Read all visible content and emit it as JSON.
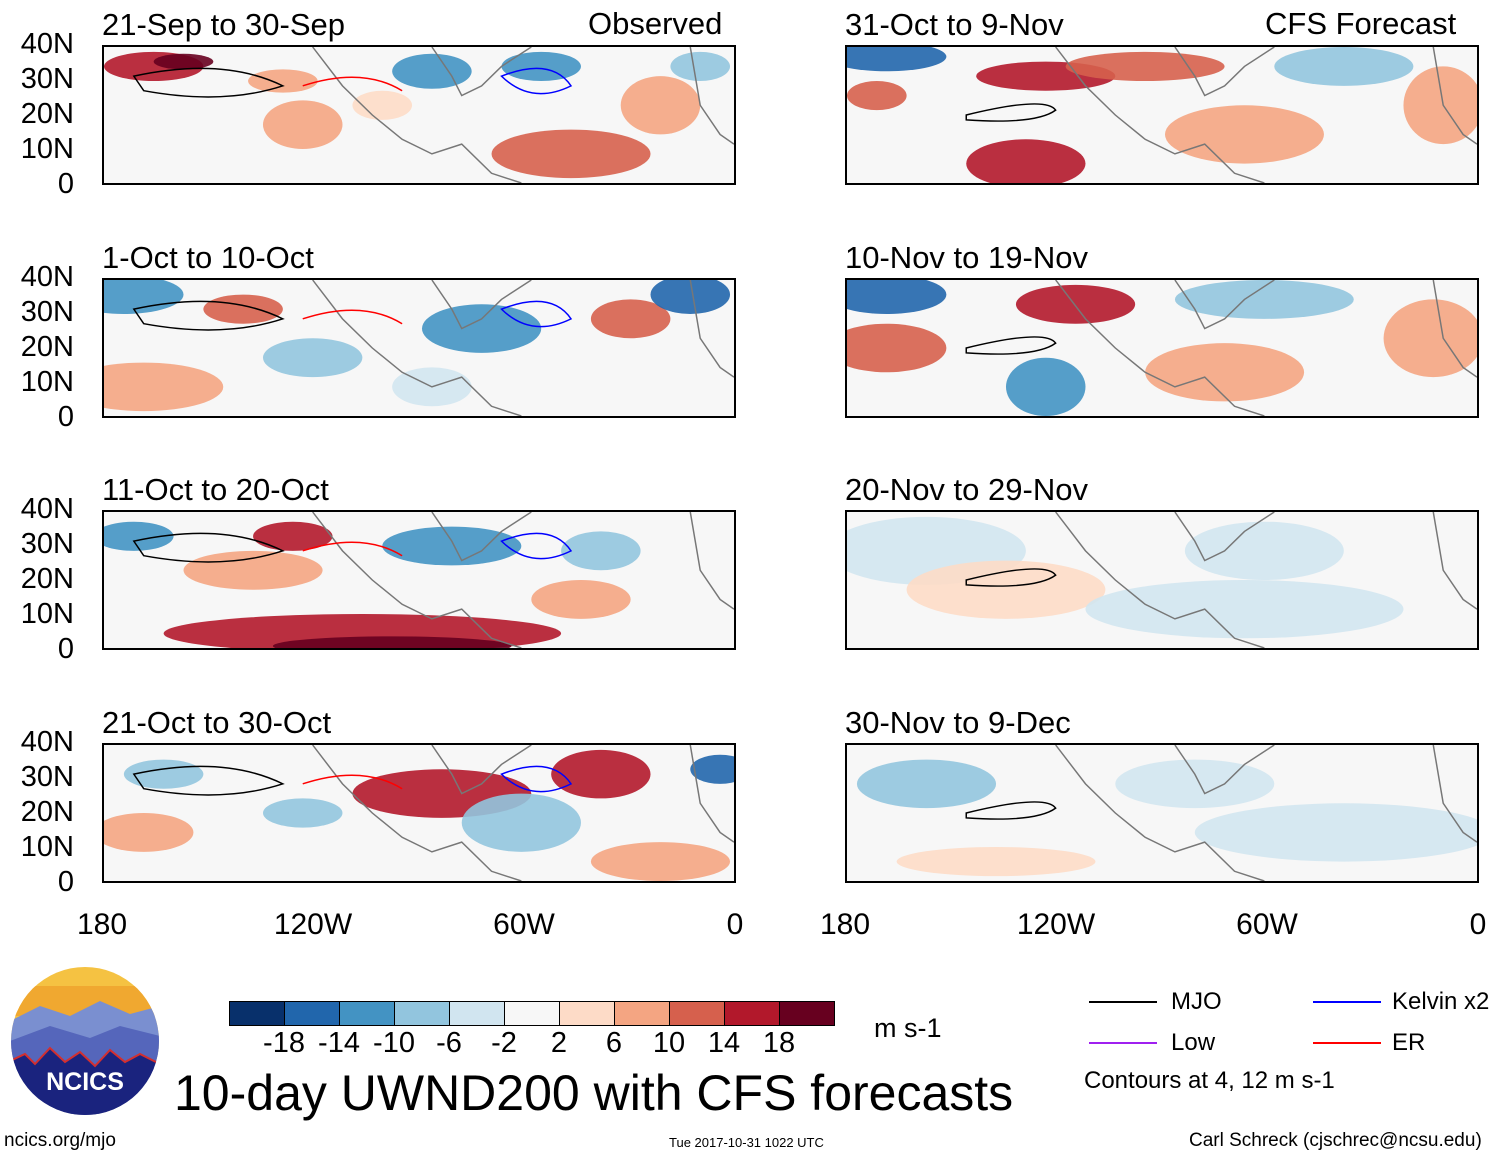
{
  "header": {
    "left_label": "Observed",
    "right_label": "CFS Forecast"
  },
  "panels_observed": [
    {
      "title": "21-Sep to 30-Sep"
    },
    {
      "title": "1-Oct to 10-Oct"
    },
    {
      "title": "11-Oct to 20-Oct"
    },
    {
      "title": "21-Oct to 30-Oct"
    }
  ],
  "panels_forecast": [
    {
      "title": "31-Oct to 9-Nov"
    },
    {
      "title": "10-Nov to 19-Nov"
    },
    {
      "title": "20-Nov to 29-Nov"
    },
    {
      "title": "30-Nov to 9-Dec"
    }
  ],
  "y_ticks": [
    "40N",
    "30N",
    "20N",
    "10N",
    "0"
  ],
  "x_ticks": [
    "180",
    "120W",
    "60W",
    "0"
  ],
  "colorbar": {
    "colors": [
      "#08306b",
      "#2166ac",
      "#4393c3",
      "#92c5de",
      "#d1e5f0",
      "#f7f7f7",
      "#fddbc7",
      "#f4a582",
      "#d6604d",
      "#b2182b",
      "#67001f"
    ],
    "labels": [
      "-18",
      "-14",
      "-10",
      "-6",
      "-2",
      "2",
      "6",
      "10",
      "14",
      "18"
    ],
    "units": "m s-1"
  },
  "legend": {
    "items": [
      {
        "label": "MJO",
        "color": "#000000"
      },
      {
        "label": "Kelvin x2",
        "color": "#0000ff"
      },
      {
        "label": "Low",
        "color": "#a020f0"
      },
      {
        "label": "ER",
        "color": "#ff0000"
      }
    ],
    "note": "Contours at 4, 12 m s-1"
  },
  "title": "10-day UWND200 with CFS forecasts",
  "logo_text": "NCICS",
  "footer": {
    "url": "ncics.org/mjo",
    "timestamp": "Tue 2017-10-31 1022 UTC",
    "credit": "Carl Schreck (cjschrec@ncsu.edu)"
  }
}
